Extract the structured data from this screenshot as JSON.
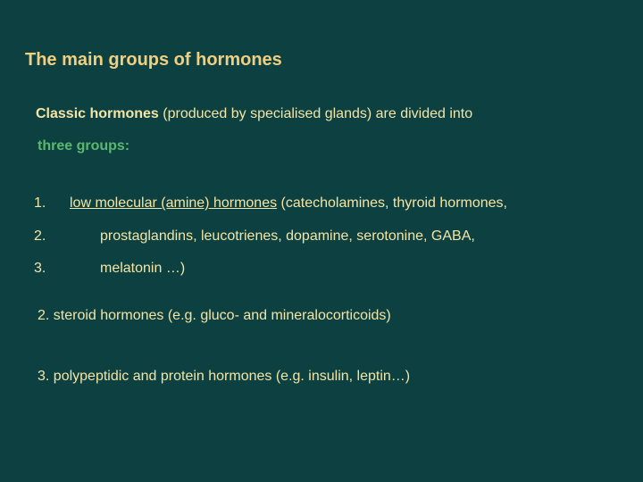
{
  "background_color": "#0d4040",
  "text_color": "#f3e5a5",
  "accent_green": "#5cb870",
  "title_color": "#f0d080",
  "font_family": "Verdana",
  "title": "The main groups of hormones",
  "intro_bold": "Classic hormones",
  "intro_rest": " (produced by specialised glands) are divided into",
  "three_groups_label": "three  groups:",
  "list": {
    "n1": "1.",
    "t1_under": "low molecular (amine) hormones",
    "t1_rest": " (catecholamines, thyroid hormones,",
    "n2": "2.",
    "t2": "prostaglandins, leucotrienes, dopamine,  serotonine, GABA,",
    "n3": "3.",
    "t3": "melatonin …)"
  },
  "section2": "2. steroid hormones (e.g. gluco- and mineralocorticoids)",
  "section3": "3. polypeptidic and protein hormones (e.g. insulin, leptin…)"
}
